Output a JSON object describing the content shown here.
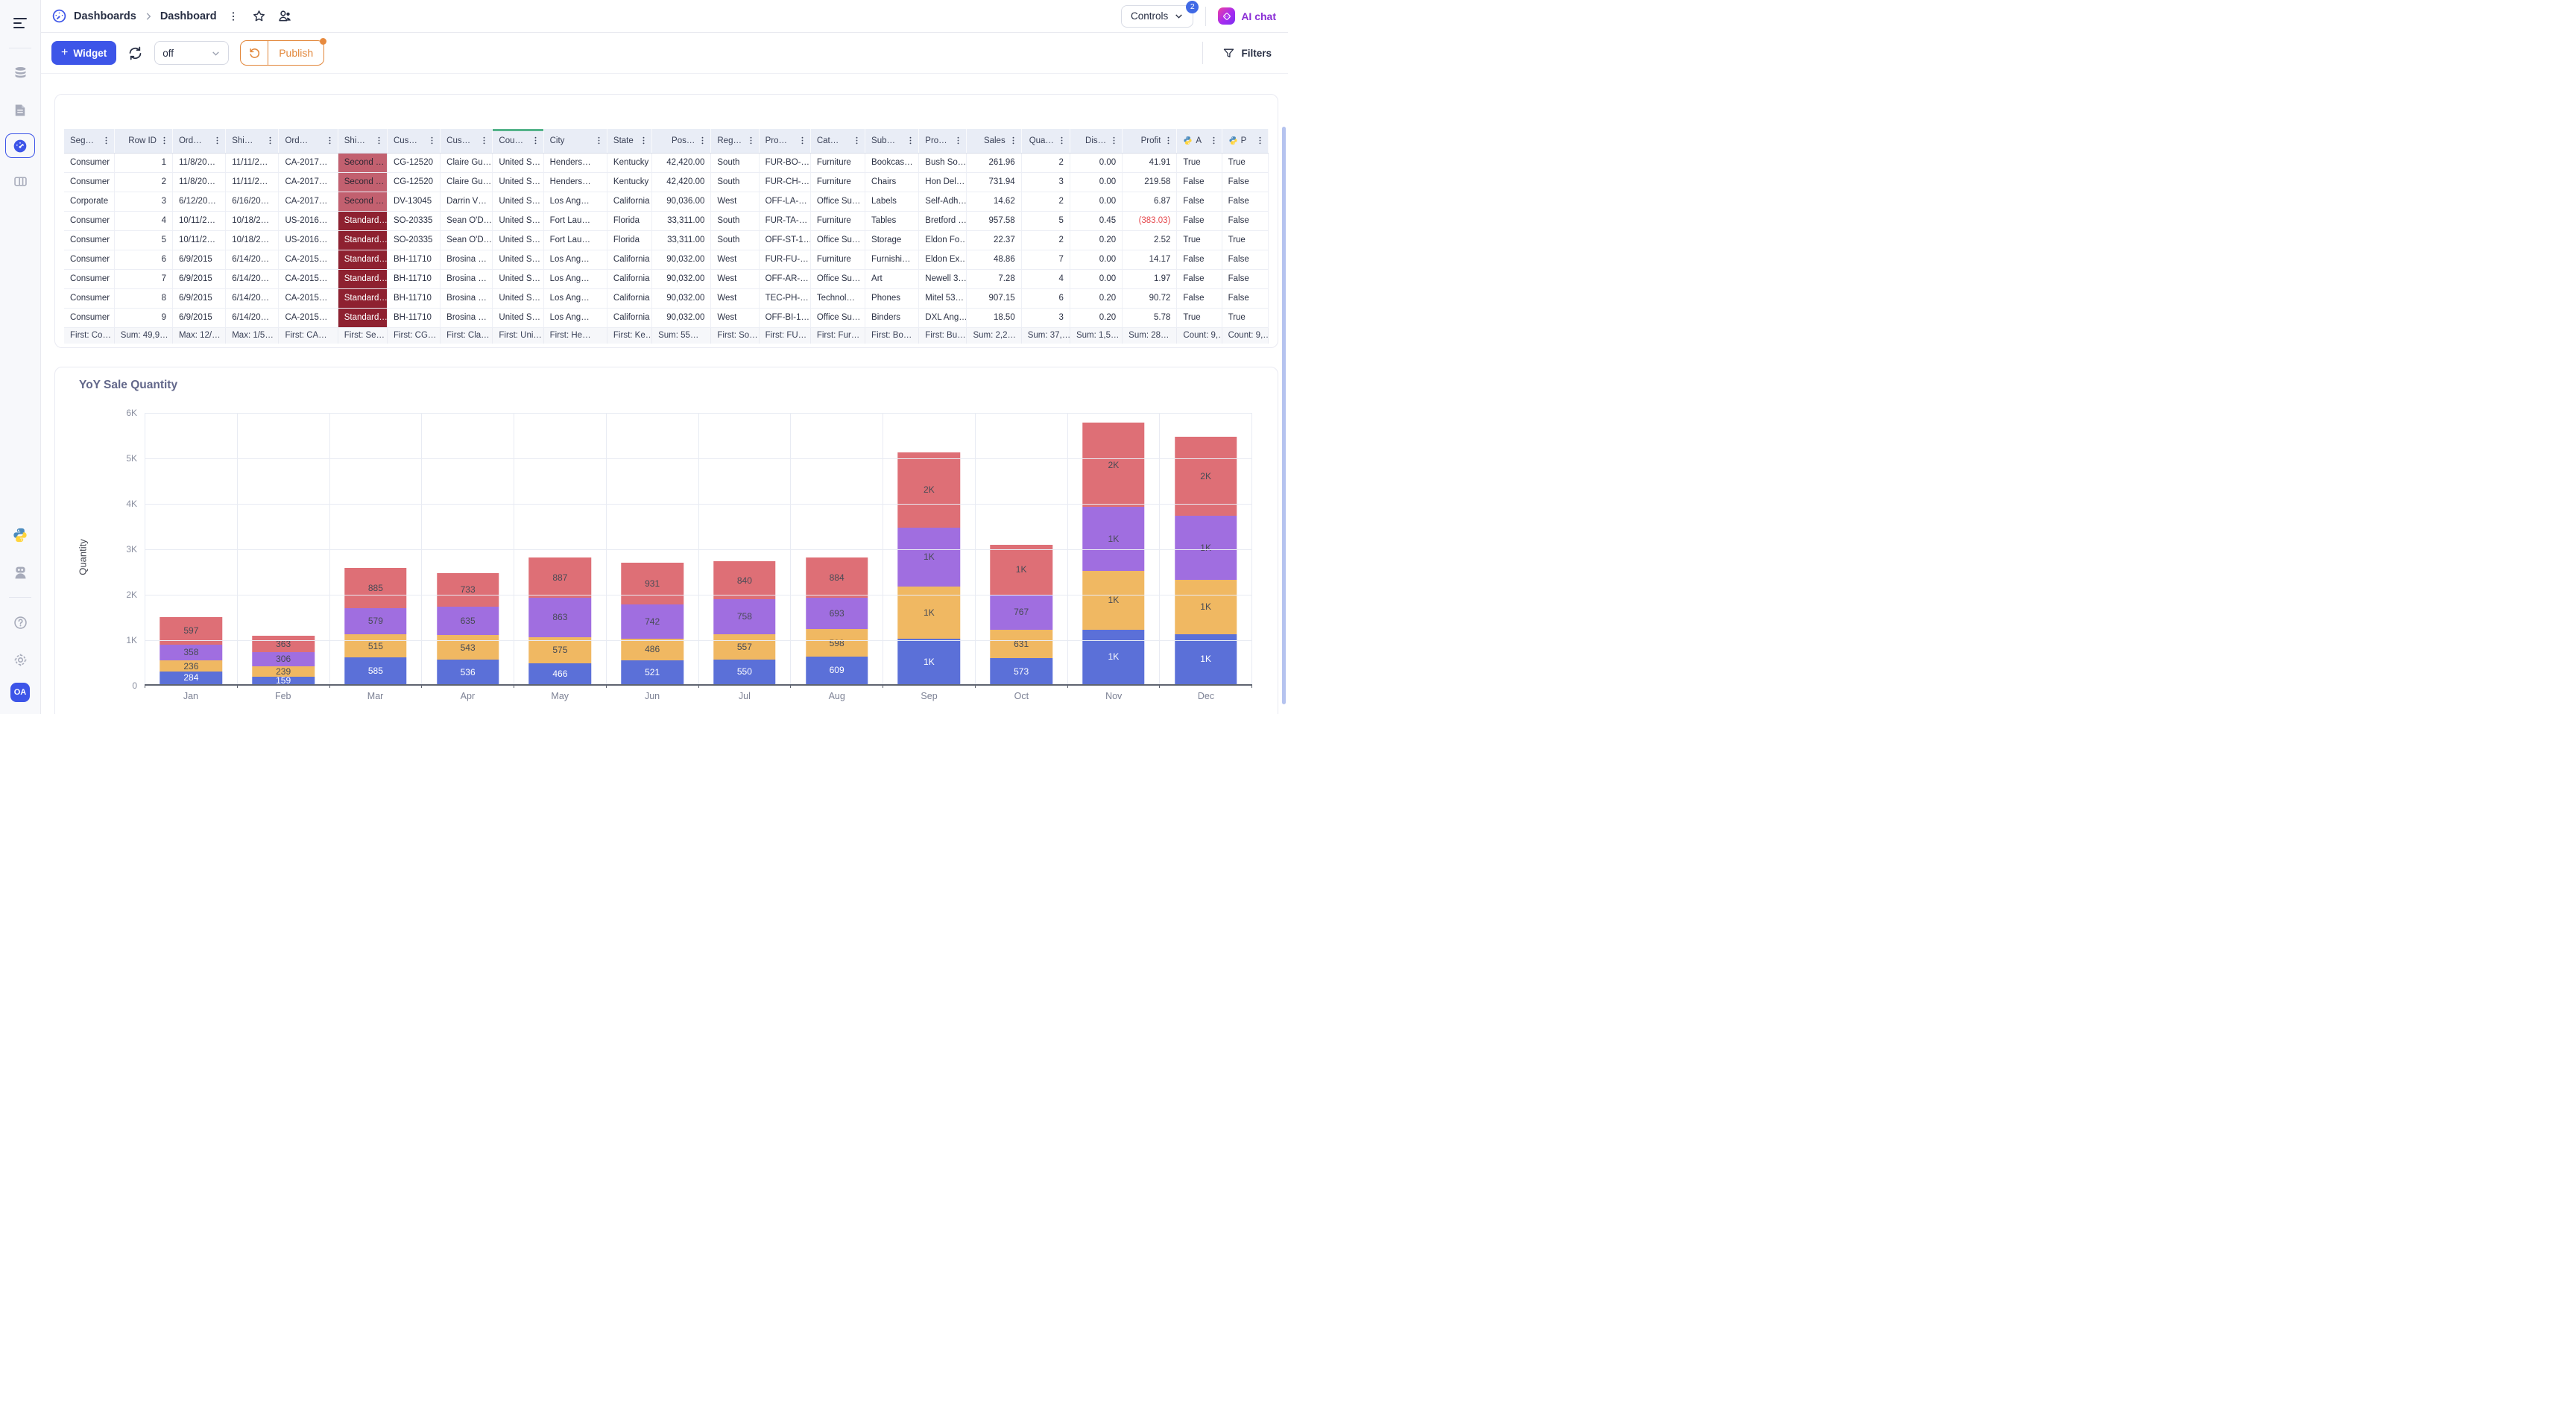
{
  "sidebar": {
    "avatar": "OA",
    "icons": [
      "menu-icon",
      "database-icon",
      "document-icon",
      "dashboard-gauge-icon",
      "table-layout-icon",
      "python-icon",
      "robot-icon",
      "help-icon",
      "settings-gear-icon"
    ]
  },
  "header": {
    "breadcrumb_root": "Dashboards",
    "breadcrumb_current": "Dashboard",
    "controls_label": "Controls",
    "controls_badge": "2",
    "ai_chat_label": "AI chat"
  },
  "toolbar": {
    "plus_icon": "+",
    "widget_label": "Widget",
    "autorefresh_value": "off",
    "publish_label": "Publish",
    "filters_label": "Filters"
  },
  "table": {
    "columns": [
      {
        "label": "Seg…",
        "width": 67
      },
      {
        "label": "Row ID",
        "width": 78,
        "align": "right"
      },
      {
        "label": "Ord…",
        "width": 71
      },
      {
        "label": "Shi…",
        "width": 71
      },
      {
        "label": "Ord…",
        "width": 79
      },
      {
        "label": "Shi…",
        "width": 66,
        "role": "shipmode"
      },
      {
        "label": "Cus…",
        "width": 71
      },
      {
        "label": "Cus…",
        "width": 70
      },
      {
        "label": "Cou…",
        "width": 68,
        "accent": true
      },
      {
        "label": "City",
        "width": 85
      },
      {
        "label": "State",
        "width": 60
      },
      {
        "label": "Pos…",
        "width": 79,
        "align": "right"
      },
      {
        "label": "Reg…",
        "width": 64
      },
      {
        "label": "Pro…",
        "width": 69
      },
      {
        "label": "Cat…",
        "width": 73
      },
      {
        "label": "Sub…",
        "width": 72
      },
      {
        "label": "Pro…",
        "width": 64
      },
      {
        "label": "Sales",
        "width": 73,
        "align": "right"
      },
      {
        "label": "Qua…",
        "width": 65,
        "align": "right"
      },
      {
        "label": "Dis…",
        "width": 70,
        "align": "right"
      },
      {
        "label": "Profit",
        "width": 73,
        "align": "right"
      },
      {
        "label": "A",
        "width": 60,
        "python": true
      },
      {
        "label": "P",
        "width": 62,
        "python": true
      }
    ],
    "rows": [
      [
        "Consumer",
        "1",
        "11/8/20…",
        "11/11/2…",
        "CA-2017…",
        "Second …",
        "CG-12520",
        "Claire Gu…",
        "United S…",
        "Henders…",
        "Kentucky",
        "42,420.00",
        "South",
        "FUR-BO-…",
        "Furniture",
        "Bookcas…",
        "Bush So…",
        "261.96",
        "2",
        "0.00",
        "41.91",
        "True",
        "True"
      ],
      [
        "Consumer",
        "2",
        "11/8/20…",
        "11/11/2…",
        "CA-2017…",
        "Second …",
        "CG-12520",
        "Claire Gu…",
        "United S…",
        "Henders…",
        "Kentucky",
        "42,420.00",
        "South",
        "FUR-CH-…",
        "Furniture",
        "Chairs",
        "Hon Del…",
        "731.94",
        "3",
        "0.00",
        "219.58",
        "False",
        "False"
      ],
      [
        "Corporate",
        "3",
        "6/12/20…",
        "6/16/20…",
        "CA-2017…",
        "Second …",
        "DV-13045",
        "Darrin V…",
        "United S…",
        "Los Ang…",
        "California",
        "90,036.00",
        "West",
        "OFF-LA-…",
        "Office Su…",
        "Labels",
        "Self-Adh…",
        "14.62",
        "2",
        "0.00",
        "6.87",
        "False",
        "False"
      ],
      [
        "Consumer",
        "4",
        "10/11/2…",
        "10/18/2…",
        "US-2016…",
        "Standard…",
        "SO-20335",
        "Sean O'D…",
        "United S…",
        "Fort Lau…",
        "Florida",
        "33,311.00",
        "South",
        "FUR-TA-…",
        "Furniture",
        "Tables",
        "Bretford …",
        "957.58",
        "5",
        "0.45",
        "(383.03)",
        "False",
        "False"
      ],
      [
        "Consumer",
        "5",
        "10/11/2…",
        "10/18/2…",
        "US-2016…",
        "Standard…",
        "SO-20335",
        "Sean O'D…",
        "United S…",
        "Fort Lau…",
        "Florida",
        "33,311.00",
        "South",
        "OFF-ST-1…",
        "Office Su…",
        "Storage",
        "Eldon Fo…",
        "22.37",
        "2",
        "0.20",
        "2.52",
        "True",
        "True"
      ],
      [
        "Consumer",
        "6",
        "6/9/2015",
        "6/14/20…",
        "CA-2015…",
        "Standard…",
        "BH-11710",
        "Brosina …",
        "United S…",
        "Los Ang…",
        "California",
        "90,032.00",
        "West",
        "FUR-FU-…",
        "Furniture",
        "Furnishi…",
        "Eldon Ex…",
        "48.86",
        "7",
        "0.00",
        "14.17",
        "False",
        "False"
      ],
      [
        "Consumer",
        "7",
        "6/9/2015",
        "6/14/20…",
        "CA-2015…",
        "Standard…",
        "BH-11710",
        "Brosina …",
        "United S…",
        "Los Ang…",
        "California",
        "90,032.00",
        "West",
        "OFF-AR-…",
        "Office Su…",
        "Art",
        "Newell 3…",
        "7.28",
        "4",
        "0.00",
        "1.97",
        "False",
        "False"
      ],
      [
        "Consumer",
        "8",
        "6/9/2015",
        "6/14/20…",
        "CA-2015…",
        "Standard…",
        "BH-11710",
        "Brosina …",
        "United S…",
        "Los Ang…",
        "California",
        "90,032.00",
        "West",
        "TEC-PH-…",
        "Technol…",
        "Phones",
        "Mitel 53…",
        "907.15",
        "6",
        "0.20",
        "90.72",
        "False",
        "False"
      ],
      [
        "Consumer",
        "9",
        "6/9/2015",
        "6/14/20…",
        "CA-2015…",
        "Standard…",
        "BH-11710",
        "Brosina …",
        "United S…",
        "Los Ang…",
        "California",
        "90,032.00",
        "West",
        "OFF-BI-1…",
        "Office Su…",
        "Binders",
        "DXL Ang…",
        "18.50",
        "3",
        "0.20",
        "5.78",
        "True",
        "True"
      ]
    ],
    "footer": [
      "First: Co…",
      "Sum: 49,9…",
      "Max: 12/…",
      "Max: 1/5…",
      "First: CA…",
      "First: Se…",
      "First: CG…",
      "First: Cla…",
      "First: Uni…",
      "First: He…",
      "First: Ke…",
      "Sum: 55…",
      "First: So…",
      "First: FU…",
      "First: Fur…",
      "First: Bo…",
      "First: Bu…",
      "Sum: 2,2…",
      "Sum: 37,…",
      "Sum: 1,5…",
      "Sum: 28…",
      "Count: 9,…",
      "Count: 9,…"
    ],
    "style": {
      "ship_light_bg": "#C2606F",
      "ship_dark_bg": "#8E2130",
      "negative_color": "#E5484D",
      "header_bg": "#E9EDF6",
      "accent_green": "#55B38A"
    }
  },
  "chart_data": {
    "type": "bar",
    "stacked": true,
    "title": "YoY Sale Quantity",
    "ylabel": "Quantity",
    "x": [
      "Jan",
      "Feb",
      "Mar",
      "Apr",
      "May",
      "Jun",
      "Jul",
      "Aug",
      "Sep",
      "Oct",
      "Nov",
      "Dec"
    ],
    "y_ticks": [
      "0",
      "1K",
      "2K",
      "3K",
      "4K",
      "5K",
      "6K"
    ],
    "ylim": [
      0,
      6000
    ],
    "grid": true,
    "legend": "none",
    "series": [
      {
        "name": "stack-1-blue",
        "color": "#5B70D8",
        "label_color": "#ffffff",
        "values": [
          284,
          159,
          585,
          536,
          466,
          521,
          550,
          609,
          1000,
          573,
          1200,
          1100
        ],
        "labels": [
          "284",
          "159",
          "585",
          "536",
          "466",
          "521",
          "550",
          "609",
          "1K",
          "573",
          "1K",
          "1K"
        ]
      },
      {
        "name": "stack-2-orange",
        "color": "#F0B862",
        "label_color": "#474b55",
        "values": [
          236,
          239,
          515,
          543,
          575,
          486,
          557,
          598,
          1150,
          631,
          1300,
          1200
        ],
        "labels": [
          "236",
          "239",
          "515",
          "543",
          "575",
          "486",
          "557",
          "598",
          "1K",
          "631",
          "1K",
          "1K"
        ]
      },
      {
        "name": "stack-3-purple",
        "color": "#A06EE0",
        "label_color": "#474b55",
        "values": [
          358,
          306,
          579,
          635,
          863,
          742,
          758,
          693,
          1300,
          767,
          1400,
          1400
        ],
        "labels": [
          "358",
          "306",
          "579",
          "635",
          "863",
          "742",
          "758",
          "693",
          "1K",
          "767",
          "1K",
          "1K"
        ]
      },
      {
        "name": "stack-4-red",
        "color": "#DE6F76",
        "label_color": "#474b55",
        "values": [
          597,
          363,
          885,
          733,
          887,
          931,
          840,
          884,
          1650,
          1100,
          1850,
          1750
        ],
        "labels": [
          "597",
          "363",
          "885",
          "733",
          "887",
          "931",
          "840",
          "884",
          "2K",
          "1K",
          "2K",
          "2K"
        ]
      }
    ]
  }
}
